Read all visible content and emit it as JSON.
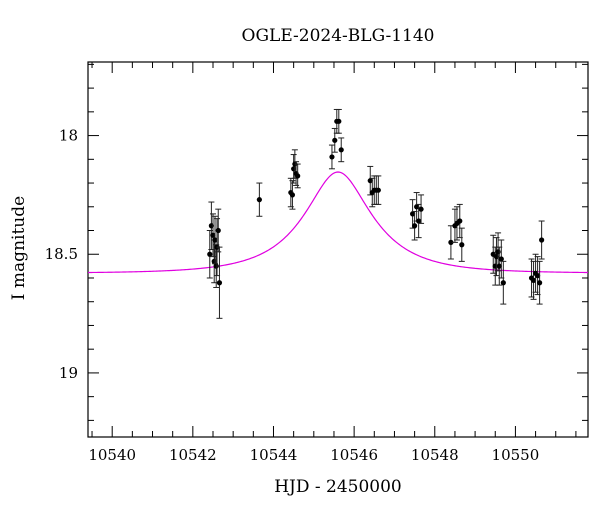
{
  "chart_data": {
    "type": "scatter",
    "title": "OGLE-2024-BLG-1140",
    "xlabel": "HJD - 2450000",
    "ylabel": "I magnitude",
    "xlim": [
      10539.4,
      10551.8
    ],
    "ylim": [
      19.27,
      17.69
    ],
    "y_inverted": true,
    "x_ticks": [
      10540,
      10542,
      10544,
      10546,
      10548,
      10550
    ],
    "x_tick_labels": [
      "10540",
      "10542",
      "10544",
      "10546",
      "10548",
      "10550"
    ],
    "y_ticks": [
      18,
      18.5,
      19
    ],
    "y_tick_labels": [
      "18",
      "18.5",
      "19"
    ],
    "grid": false,
    "model_color": "#e000e0",
    "point_color": "#000000",
    "model": {
      "t0": 10545.6,
      "u0": 0.47,
      "tE": 1.65,
      "baseline": 18.58,
      "fs": 0.37
    },
    "series": [
      {
        "x": [
          10542.42,
          10542.46,
          10542.5,
          10542.53,
          10542.55,
          10542.58,
          10542.6,
          10542.63,
          10542.66,
          10543.65,
          10544.43,
          10544.47,
          10544.5,
          10544.53,
          10544.56,
          10544.6,
          10545.45,
          10545.52,
          10545.57,
          10545.62,
          10545.68,
          10546.4,
          10546.45,
          10546.5,
          10546.55,
          10546.6,
          10547.45,
          10547.5,
          10547.55,
          10547.6,
          10547.66,
          10548.4,
          10548.5,
          10548.55,
          10548.62,
          10548.67,
          10549.45,
          10549.5,
          10549.53,
          10549.57,
          10549.6,
          10549.65,
          10549.7,
          10550.4,
          10550.45,
          10550.5,
          10550.55,
          10550.6,
          10550.65
        ],
        "y": [
          18.5,
          18.38,
          18.42,
          18.53,
          18.44,
          18.55,
          18.47,
          18.4,
          18.62,
          18.27,
          18.24,
          18.25,
          18.14,
          18.12,
          18.16,
          18.17,
          18.09,
          18.02,
          17.94,
          17.94,
          18.06,
          18.19,
          18.24,
          18.23,
          18.23,
          18.23,
          18.33,
          18.38,
          18.3,
          18.36,
          18.31,
          18.45,
          18.38,
          18.37,
          18.36,
          18.46,
          18.5,
          18.55,
          18.51,
          18.49,
          18.55,
          18.52,
          18.62,
          18.6,
          18.61,
          18.58,
          18.59,
          18.62,
          18.44
        ],
        "err": [
          0.1,
          0.1,
          0.09,
          0.09,
          0.1,
          0.09,
          0.12,
          0.09,
          0.15,
          0.07,
          0.06,
          0.06,
          0.06,
          0.06,
          0.05,
          0.05,
          0.05,
          0.05,
          0.05,
          0.05,
          0.05,
          0.06,
          0.06,
          0.06,
          0.06,
          0.06,
          0.06,
          0.06,
          0.06,
          0.07,
          0.06,
          0.07,
          0.07,
          0.07,
          0.07,
          0.07,
          0.08,
          0.08,
          0.08,
          0.08,
          0.08,
          0.08,
          0.09,
          0.08,
          0.08,
          0.08,
          0.08,
          0.09,
          0.08
        ]
      }
    ]
  }
}
